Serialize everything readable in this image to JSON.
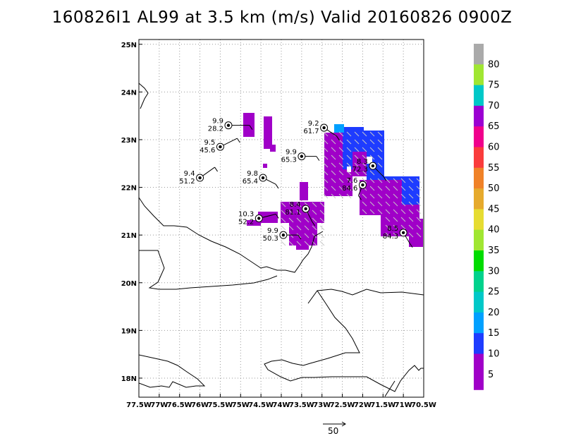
{
  "title": "160826I1 AL99 at 3.5 km (m/s) Valid 20160826 0900Z",
  "chart_data": {
    "type": "map",
    "lon_range": [
      -77.5,
      -70.5
    ],
    "lat_range": [
      17.6,
      25.1
    ],
    "grid": true,
    "x_ticks": [
      {
        "lon": -77.5,
        "label": "77.5W"
      },
      {
        "lon": -77.0,
        "label": "77W"
      },
      {
        "lon": -76.5,
        "label": "76.5W"
      },
      {
        "lon": -76.0,
        "label": "76W"
      },
      {
        "lon": -75.5,
        "label": "75.5W"
      },
      {
        "lon": -75.0,
        "label": "75W"
      },
      {
        "lon": -74.5,
        "label": "74.5W"
      },
      {
        "lon": -74.0,
        "label": "74W"
      },
      {
        "lon": -73.5,
        "label": "73.5W"
      },
      {
        "lon": -73.0,
        "label": "73W"
      },
      {
        "lon": -72.5,
        "label": "72.5W"
      },
      {
        "lon": -72.0,
        "label": "72W"
      },
      {
        "lon": -71.5,
        "label": "71.5W"
      },
      {
        "lon": -71.0,
        "label": "71W"
      },
      {
        "lon": -70.5,
        "label": "70.5W"
      }
    ],
    "y_ticks": [
      {
        "lat": 18,
        "label": "18N"
      },
      {
        "lat": 19,
        "label": "19N"
      },
      {
        "lat": 20,
        "label": "20N"
      },
      {
        "lat": 21,
        "label": "21N"
      },
      {
        "lat": 22,
        "label": "22N"
      },
      {
        "lat": 23,
        "label": "23N"
      },
      {
        "lat": 24,
        "label": "24N"
      },
      {
        "lat": 25,
        "label": "25N"
      }
    ],
    "colorbar": {
      "labels": [
        "80",
        "75",
        "70",
        "65",
        "60",
        "55",
        "50",
        "45",
        "40",
        "35",
        "30",
        "25",
        "20",
        "15",
        "10",
        "5"
      ],
      "colors": [
        "#aaaaaa",
        "#a0e632",
        "#00c8c8",
        "#9b00d2",
        "#f0008c",
        "#fa3c3c",
        "#f08228",
        "#e6aa2d",
        "#e6dc32",
        "#a0e632",
        "#00dc00",
        "#00d28c",
        "#00c8c8",
        "#00a0ff",
        "#1e3cff",
        "#a000c8"
      ],
      "bottom_color": "#a000c8"
    },
    "observations": [
      {
        "lon": -75.3,
        "lat": 23.3,
        "speed": "9.9",
        "value": "28.2",
        "wind_u": 10,
        "wind_v": 0
      },
      {
        "lon": -75.5,
        "lat": 22.85,
        "speed": "9.5",
        "value": "45.6",
        "wind_u": 8,
        "wind_v": 4
      },
      {
        "lon": -76.0,
        "lat": 22.2,
        "speed": "9.4",
        "value": "51.2",
        "wind_u": 7,
        "wind_v": 5
      },
      {
        "lon": -74.45,
        "lat": 22.2,
        "speed": "9.8",
        "value": "65.4",
        "wind_u": 6,
        "wind_v": -3
      },
      {
        "lon": -73.5,
        "lat": 22.65,
        "speed": "9.9",
        "value": "65.3",
        "wind_u": 7,
        "wind_v": 0
      },
      {
        "lon": -72.95,
        "lat": 23.25,
        "speed": "9.2",
        "value": "61.7",
        "wind_u": 6,
        "wind_v": -4
      },
      {
        "lon": -71.75,
        "lat": 22.45,
        "speed": "8.3",
        "value": "72.3",
        "wind_u": 5,
        "wind_v": -5
      },
      {
        "lon": -72.0,
        "lat": 22.05,
        "speed": "7.6",
        "value": "84.6",
        "wind_u": -2,
        "wind_v": -5
      },
      {
        "lon": -73.4,
        "lat": 21.55,
        "speed": "8.4",
        "value": "81.1",
        "wind_u": 3,
        "wind_v": -6
      },
      {
        "lon": -74.55,
        "lat": 21.35,
        "speed": "10.3",
        "value": "52.2",
        "wind_u": 8,
        "wind_v": 2
      },
      {
        "lon": -73.95,
        "lat": 21.0,
        "speed": "9.9",
        "value": "50.3",
        "wind_u": 7,
        "wind_v": 0
      },
      {
        "lon": -71.0,
        "lat": 21.05,
        "speed": "8.5",
        "value": "84.3",
        "wind_u": 3,
        "wind_v": -5
      }
    ],
    "reference_vector": {
      "label": "50"
    }
  }
}
